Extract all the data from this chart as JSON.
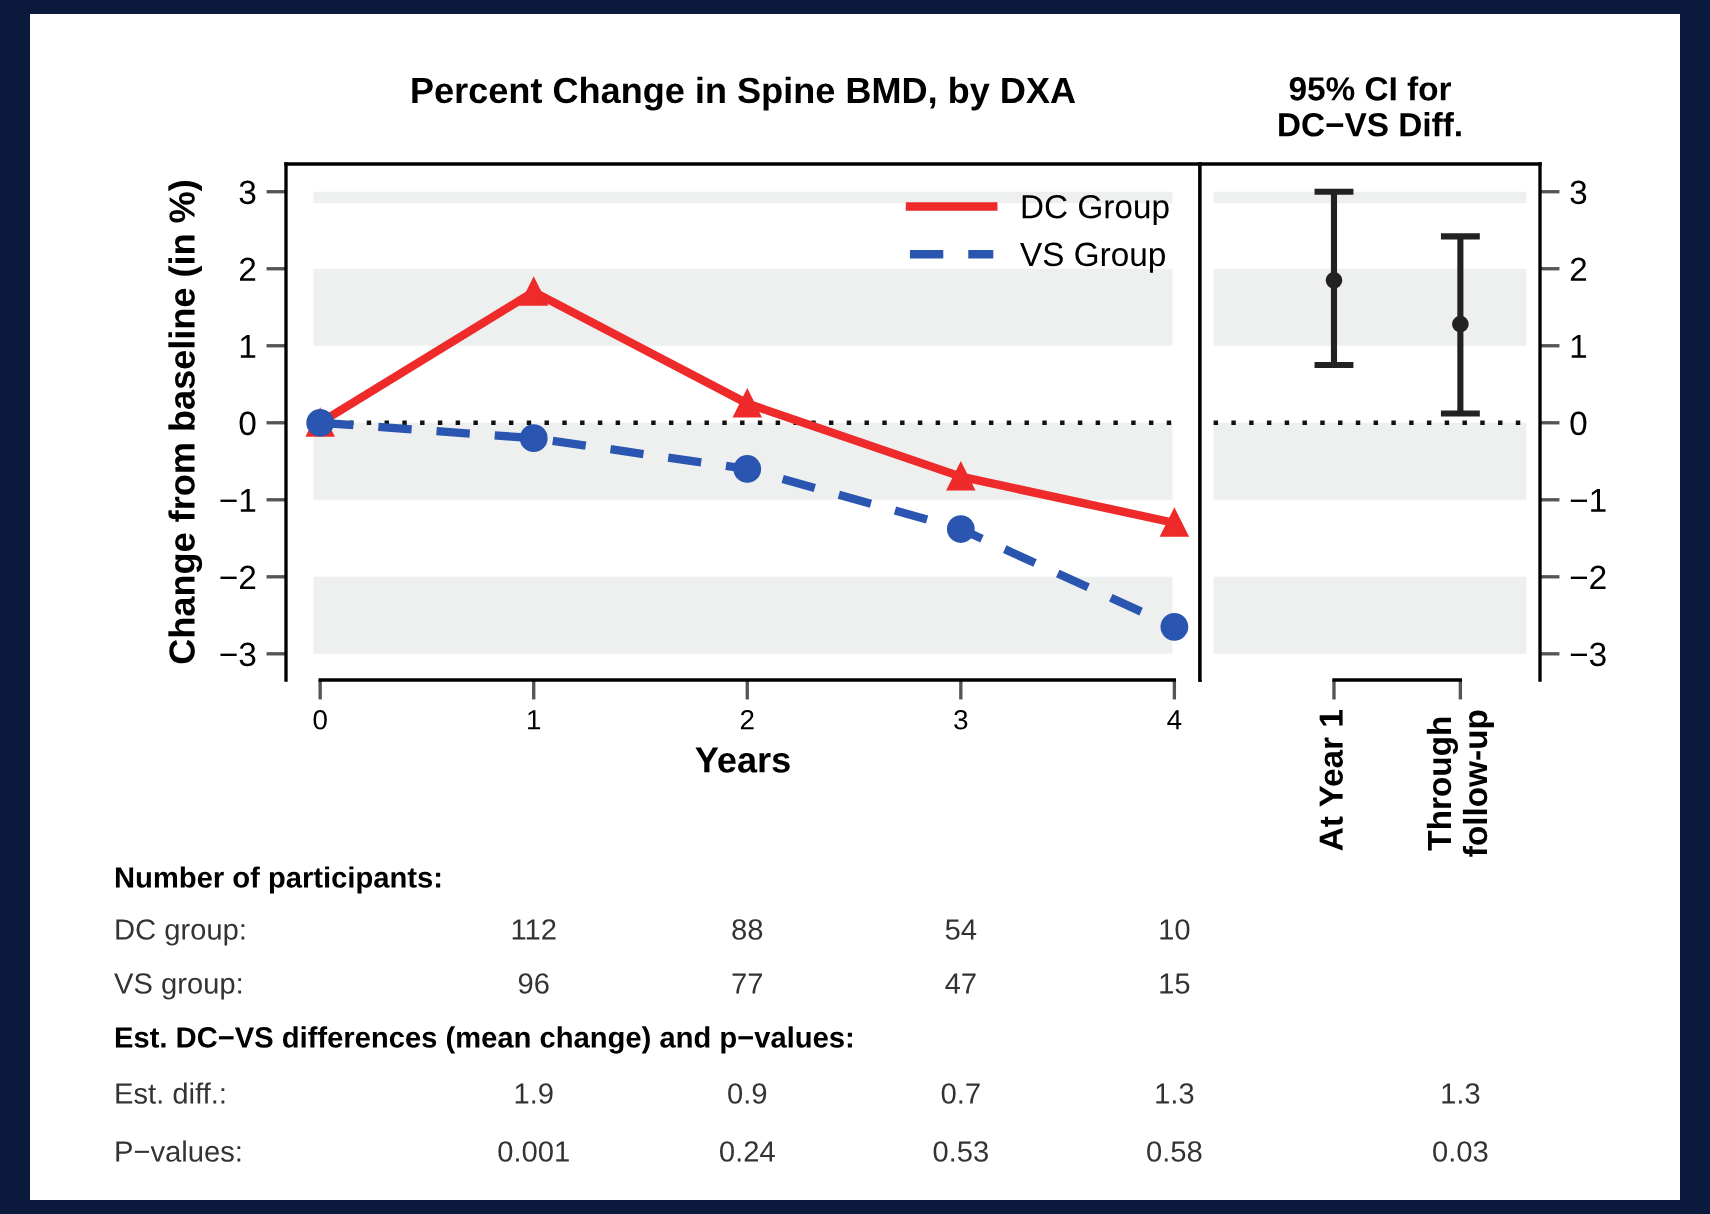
{
  "chart_data": [
    {
      "type": "line",
      "title": "Percent Change in Spine BMD, by DXA",
      "xlabel": "Years",
      "ylabel": "Change from baseline (in %)",
      "x": [
        0,
        1,
        2,
        3,
        4
      ],
      "series": [
        {
          "name": "DC Group",
          "color": "#ee2a2a",
          "values": [
            0,
            1.7,
            0.25,
            -0.7,
            -1.3
          ],
          "marker": "triangle",
          "line_style": "solid"
        },
        {
          "name": "VS Group",
          "color": "#2a55b0",
          "values": [
            0,
            -0.2,
            -0.6,
            -1.38,
            -2.65
          ],
          "marker": "circle",
          "line_style": "dashed"
        }
      ],
      "xlim": [
        -0.16,
        4.12
      ],
      "xticks": [
        0,
        1,
        2,
        3,
        4
      ],
      "ylim": [
        -3.34,
        3.36
      ],
      "yticks": [
        -3,
        -2,
        -1,
        0,
        1,
        2,
        3
      ],
      "ref_lines": [
        {
          "axis": "y",
          "value": 0,
          "color": "#111111",
          "line_style": "dotted"
        }
      ],
      "bands": [
        {
          "axis": "y",
          "from": 2.85,
          "to": 3,
          "color": "#eef0ef"
        },
        {
          "axis": "y",
          "from": 1,
          "to": 2,
          "color": "#eef0ef"
        },
        {
          "axis": "y",
          "from": -1,
          "to": 0,
          "color": "#eef0ef"
        },
        {
          "axis": "y",
          "from": -3,
          "to": -2,
          "color": "#eef0ef"
        }
      ],
      "legend": "top right",
      "grid": false,
      "annotations": [
        "Number of participants:",
        "DC group:",
        "112",
        "88",
        "54",
        "10",
        "VS group:",
        "96",
        "77",
        "47",
        "15",
        "Est. DC−VS differences (mean change) and p−values:",
        "Est. diff.:",
        "1.9",
        "0.9",
        "0.7",
        "1.3",
        "1.3",
        "P−values:",
        "0.001",
        "0.24",
        "0.53",
        "0.58",
        "0.03"
      ]
    },
    {
      "type": "scatter",
      "title": "95% CI for\nDC−VS Diff.",
      "categories": [
        "At Year 1",
        "Through follow-up"
      ],
      "series": [
        {
          "color": "#222222",
          "values": [
            1.85,
            1.28
          ],
          "errors": [
            [
              0.75,
              3.0
            ],
            [
              0.12,
              2.42
            ]
          ],
          "axis": "y2"
        }
      ],
      "y2lim": [
        -3.34,
        3.36
      ],
      "y2ticks": [
        -3,
        -2,
        -1,
        0,
        1,
        2,
        3
      ],
      "ref_lines": [
        {
          "axis": "y2",
          "value": 0,
          "color": "#111111",
          "line_style": "dotted"
        }
      ],
      "bands": [
        {
          "axis": "y2",
          "from": 2.85,
          "to": 3,
          "color": "#eef0ef"
        },
        {
          "axis": "y2",
          "from": 1,
          "to": 2,
          "color": "#eef0ef"
        },
        {
          "axis": "y2",
          "from": -1,
          "to": 0,
          "color": "#eef0ef"
        },
        {
          "axis": "y2",
          "from": -3,
          "to": -2,
          "color": "#eef0ef"
        }
      ],
      "marker": "circle",
      "grid": false
    }
  ]
}
